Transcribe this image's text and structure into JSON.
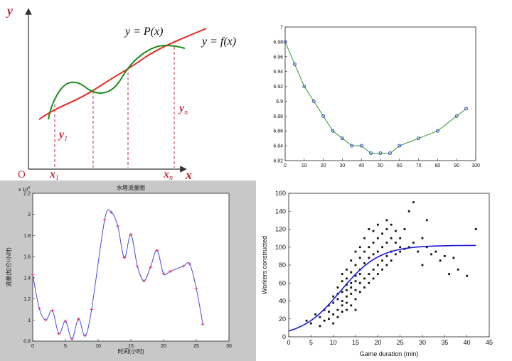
{
  "chart_data": [
    {
      "type": "line",
      "diagram": "interpolation",
      "labels": {
        "y_axis": "y",
        "x_axis": "x",
        "origin": "O",
        "p_curve": "y = P(x)",
        "f_curve": "y = f(x)",
        "y1": "y",
        "y1_sub": "1",
        "yn": "y",
        "yn_sub": "n",
        "x1": "x",
        "x1_sub": "1",
        "xn": "x",
        "xn_sub": "n"
      },
      "colors": {
        "f_curve": "#e8281e",
        "p_curve": "#1e8c1e",
        "label": "#c0283c"
      }
    },
    {
      "type": "scatter",
      "xlim": [
        0,
        100
      ],
      "ylim": [
        6.82,
        7.0
      ],
      "xticks": [
        0,
        10,
        20,
        30,
        40,
        50,
        60,
        70,
        80,
        90,
        100
      ],
      "yticks": [
        6.82,
        6.84,
        6.86,
        6.88,
        6.9,
        6.92,
        6.94,
        6.96,
        6.98,
        7
      ],
      "points": {
        "x": [
          0,
          5,
          10,
          15,
          20,
          25,
          30,
          35,
          40,
          45,
          50,
          55,
          60,
          70,
          80,
          90,
          95
        ],
        "y": [
          6.98,
          6.95,
          6.92,
          6.9,
          6.88,
          6.86,
          6.85,
          6.84,
          6.84,
          6.83,
          6.83,
          6.83,
          6.84,
          6.85,
          6.86,
          6.88,
          6.89
        ]
      },
      "fit": {
        "color": "#2e9a2e"
      },
      "marker_color": "#2a3cc8"
    },
    {
      "type": "line",
      "title": "水塔流量图",
      "xlabel": "时间(小时)",
      "ylabel": "流量(加仑/小时)",
      "y_exponent": "x 10",
      "y_exponent_power": "4",
      "xlim": [
        0,
        30
      ],
      "ylim": [
        0.8,
        2.2
      ],
      "xticks": [
        0,
        5,
        10,
        15,
        20,
        25,
        30
      ],
      "yticks": [
        0.8,
        1,
        1.2,
        1.4,
        1.6,
        1.8,
        2,
        2.2
      ],
      "series": [
        {
          "x": [
            0,
            1,
            2,
            3,
            4,
            5,
            6,
            7,
            8,
            9,
            11,
            12,
            13,
            14,
            15,
            16,
            17,
            18,
            19,
            20,
            21,
            23,
            24,
            25,
            26
          ],
          "y": [
            1.43,
            1.11,
            1.0,
            1.09,
            0.87,
            0.99,
            0.82,
            1.01,
            0.85,
            1.1,
            1.95,
            2.02,
            1.89,
            1.59,
            1.81,
            1.51,
            1.37,
            1.5,
            1.66,
            1.44,
            1.46,
            1.51,
            1.53,
            1.3,
            0.96
          ]
        }
      ],
      "colors": {
        "line": "#4a4ae0",
        "marker": "#e03070",
        "plot_bg": "#ffffff",
        "figure_bg": "#c8c8c8"
      }
    },
    {
      "type": "scatter",
      "xlabel": "Game duration (min)",
      "ylabel": "Workers constructed",
      "xlim": [
        0,
        45
      ],
      "ylim": [
        0,
        160
      ],
      "xticks": [
        0,
        5,
        10,
        15,
        20,
        25,
        30,
        35,
        40,
        45
      ],
      "yticks": [
        0,
        20,
        40,
        60,
        80,
        100,
        120,
        140,
        160
      ],
      "curve": {
        "color": "#1a1ad8",
        "asymptote": 102
      },
      "points": {
        "x": [
          4,
          5,
          6,
          7,
          7,
          8,
          8,
          9,
          9,
          9,
          10,
          10,
          10,
          10,
          11,
          11,
          11,
          11,
          11,
          12,
          12,
          12,
          12,
          12,
          12,
          13,
          13,
          13,
          13,
          13,
          13,
          13,
          14,
          14,
          14,
          14,
          14,
          14,
          15,
          15,
          15,
          15,
          15,
          15,
          15,
          16,
          16,
          16,
          16,
          16,
          16,
          17,
          17,
          17,
          17,
          17,
          18,
          18,
          18,
          18,
          18,
          19,
          19,
          19,
          19,
          19,
          20,
          20,
          20,
          20,
          20,
          21,
          21,
          21,
          21,
          22,
          22,
          22,
          22,
          22,
          23,
          23,
          23,
          23,
          24,
          24,
          24,
          25,
          25,
          25,
          26,
          26,
          27,
          27,
          28,
          28,
          29,
          30,
          30,
          31,
          31,
          32,
          33,
          34,
          35,
          36,
          37,
          38,
          40,
          42
        ],
        "y": [
          18,
          15,
          25,
          22,
          12,
          30,
          18,
          28,
          20,
          35,
          25,
          38,
          45,
          15,
          30,
          42,
          55,
          22,
          48,
          35,
          50,
          62,
          28,
          40,
          70,
          45,
          58,
          30,
          65,
          52,
          38,
          75,
          48,
          60,
          72,
          35,
          85,
          55,
          52,
          68,
          80,
          42,
          62,
          95,
          30,
          60,
          75,
          88,
          50,
          70,
          100,
          65,
          82,
          95,
          55,
          110,
          70,
          88,
          100,
          60,
          120,
          75,
          92,
          105,
          65,
          118,
          80,
          95,
          110,
          70,
          125,
          85,
          100,
          115,
          75,
          90,
          105,
          120,
          80,
          130,
          95,
          110,
          85,
          125,
          92,
          105,
          118,
          95,
          110,
          100,
          98,
          120,
          100,
          140,
          105,
          150,
          95,
          110,
          80,
          100,
          130,
          92,
          95,
          85,
          90,
          70,
          88,
          75,
          68,
          120
        ]
      },
      "colors": {
        "dots": "#111111"
      }
    }
  ]
}
